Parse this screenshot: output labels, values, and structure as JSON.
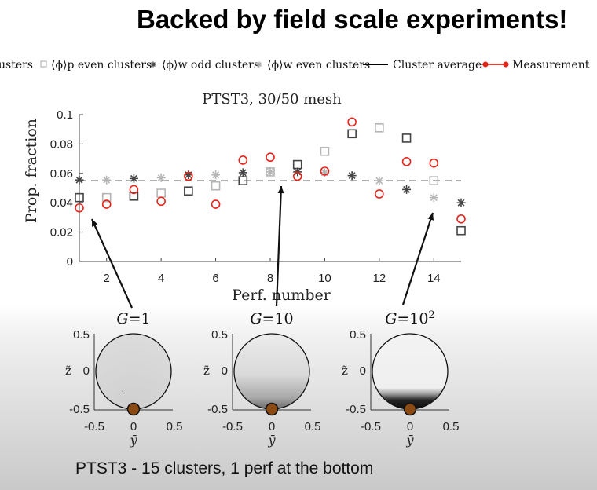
{
  "slide": {
    "title": "Backed by field scale experiments!",
    "caption": "PTST3 - 15 clusters, 1 perf at the bottom"
  },
  "legend": {
    "items": [
      {
        "label": "usters",
        "marker": "none",
        "color": "#333333"
      },
      {
        "label": "⟨ϕ⟩p even clusters",
        "marker": "square",
        "color": "#aaaaaa"
      },
      {
        "label": "⟨ϕ⟩w odd clusters",
        "marker": "asterisk",
        "color": "#444444"
      },
      {
        "label": "⟨ϕ⟩w even clusters",
        "marker": "asterisk",
        "color": "#aaaaaa"
      },
      {
        "label": "Cluster average",
        "marker": "line",
        "color": "#000000"
      },
      {
        "label": "Measurement",
        "marker": "circle-line",
        "color": "#e8231a"
      }
    ]
  },
  "chart_data": [
    {
      "type": "scatter",
      "title": "PTST3, 30/50 mesh",
      "xlabel": "Perf. number",
      "ylabel": "Prop. fraction",
      "xlim": [
        1,
        15
      ],
      "ylim": [
        0,
        0.1
      ],
      "xticks": [
        2,
        4,
        6,
        8,
        10,
        12,
        14
      ],
      "yticks": [
        0,
        0.02,
        0.04,
        0.06,
        0.08,
        0.1
      ],
      "xtick_labels": [
        "2",
        "4",
        "6",
        "8",
        "10",
        "12",
        "14"
      ],
      "ytick_labels": [
        "0",
        "0.02",
        "0.04",
        "0.06",
        "0.08",
        "0.1"
      ],
      "cluster_average": 0.055,
      "colors": {
        "dark": "#444444",
        "light": "#b5b5b5",
        "measurement": "#e8231a"
      },
      "series": [
        {
          "name": "⟨ϕ⟩p odd clusters",
          "marker": "square",
          "color": "#444444",
          "x": [
            1,
            3,
            5,
            7,
            9,
            11,
            13,
            15
          ],
          "y": [
            0.0435,
            0.0445,
            0.048,
            0.055,
            0.066,
            0.087,
            0.084,
            0.021
          ]
        },
        {
          "name": "⟨ϕ⟩p even clusters",
          "marker": "square",
          "color": "#b5b5b5",
          "x": [
            2,
            4,
            6,
            8,
            10,
            12,
            14
          ],
          "y": [
            0.0435,
            0.0465,
            0.0515,
            0.061,
            0.075,
            0.091,
            0.055
          ]
        },
        {
          "name": "⟨ϕ⟩w odd clusters",
          "marker": "asterisk",
          "color": "#444444",
          "x": [
            1,
            3,
            5,
            7,
            9,
            11,
            13,
            15
          ],
          "y": [
            0.0555,
            0.0565,
            0.059,
            0.0605,
            0.061,
            0.0585,
            0.049,
            0.04
          ]
        },
        {
          "name": "⟨ϕ⟩w even clusters",
          "marker": "asterisk",
          "color": "#b5b5b5",
          "x": [
            2,
            4,
            6,
            8,
            10,
            12,
            14
          ],
          "y": [
            0.0555,
            0.057,
            0.059,
            0.061,
            0.0605,
            0.055,
            0.0435
          ]
        },
        {
          "name": "Measurement",
          "marker": "circle",
          "color": "#e8231a",
          "x": [
            1,
            2,
            3,
            4,
            5,
            6,
            7,
            8,
            9,
            10,
            11,
            12,
            13,
            14,
            15
          ],
          "y": [
            0.0365,
            0.039,
            0.049,
            0.041,
            0.058,
            0.039,
            0.069,
            0.071,
            0.058,
            0.0615,
            0.095,
            0.046,
            0.068,
            0.067,
            0.029
          ]
        }
      ]
    },
    {
      "type": "heatmap",
      "title": "G=1",
      "xlabel": "ȳ",
      "ylabel": "z̃",
      "xlim": [
        -0.5,
        0.5
      ],
      "ylim": [
        -0.5,
        0.5
      ],
      "xtick_labels": [
        "-0.5",
        "0",
        "0.5"
      ],
      "ytick_labels": [
        "0.5",
        "0",
        "-0.5"
      ],
      "G": 1
    },
    {
      "type": "heatmap",
      "title": "G=10",
      "xlabel": "ȳ",
      "ylabel": "z̃",
      "xlim": [
        -0.5,
        0.5
      ],
      "ylim": [
        -0.5,
        0.5
      ],
      "xtick_labels": [
        "-0.5",
        "0",
        "0.5"
      ],
      "ytick_labels": [
        "0.5",
        "0",
        "-0.5"
      ],
      "G": 10
    },
    {
      "type": "heatmap",
      "title": "G=10²",
      "xlabel": "ȳ",
      "ylabel": "z̃",
      "xlim": [
        -0.5,
        0.5
      ],
      "ylim": [
        -0.5,
        0.5
      ],
      "xtick_labels": [
        "-0.5",
        "0",
        "0.5"
      ],
      "ytick_labels": [
        "0.5",
        "0",
        "-0.5"
      ],
      "G": 100
    }
  ],
  "arrows": [
    {
      "from_panel": 0,
      "to_perf": 1
    },
    {
      "from_panel": 1,
      "to_perf": 8
    },
    {
      "from_panel": 2,
      "to_perf": 14
    }
  ]
}
